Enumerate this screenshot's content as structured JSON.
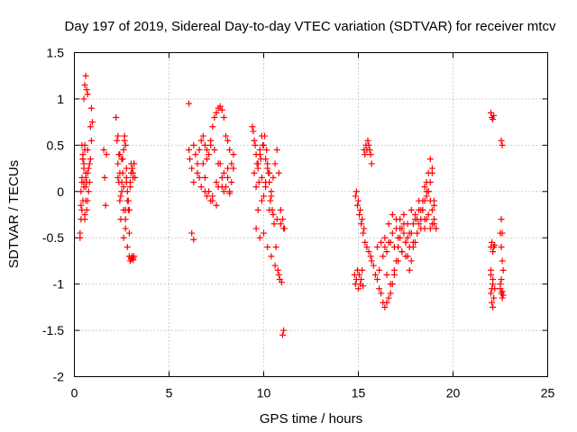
{
  "chart_data": {
    "type": "scatter",
    "title": "Day 197 of 2019, Sidereal Day-to-day VTEC variation (SDTVAR) for receiver mtcv",
    "xlabel": "GPS time / hours",
    "ylabel": "SDTVAR / TECUs",
    "xlim": [
      0,
      25
    ],
    "ylim": [
      -2,
      1.5
    ],
    "xticks": [
      0,
      5,
      10,
      15,
      20,
      25
    ],
    "yticks": [
      -2,
      -1.5,
      -1,
      -0.5,
      0,
      0.5,
      1,
      1.5
    ],
    "xtick_labels": [
      "0",
      "5",
      "10",
      "15",
      "20",
      "25"
    ],
    "ytick_labels": [
      "-2",
      "-1.5",
      "-1",
      "-0.5",
      "0",
      "0.5",
      "1",
      "1.5"
    ],
    "grid": true,
    "marker": "+",
    "color": "#ff0000",
    "series": [
      {
        "name": "SDTVAR",
        "x": [
          0.3,
          0.35,
          0.4,
          0.45,
          0.5,
          0.55,
          0.6,
          0.65,
          0.7,
          0.75,
          0.8,
          0.85,
          0.9,
          0.95,
          0.5,
          0.55,
          0.6,
          0.65,
          0.7,
          0.35,
          0.4,
          0.45,
          0.5,
          0.55,
          0.6,
          0.65,
          0.7,
          0.4,
          0.45,
          0.5,
          0.55,
          0.6,
          0.3,
          0.35,
          0.4,
          0.45,
          0.5,
          0.55,
          0.6,
          0.7,
          0.75,
          0.8,
          0.85,
          0.9,
          1.55,
          1.6,
          1.65,
          1.7,
          2.2,
          2.25,
          2.3,
          2.35,
          2.4,
          2.45,
          2.5,
          2.55,
          2.6,
          2.65,
          2.7,
          2.75,
          2.8,
          2.85,
          2.9,
          2.95,
          3.0,
          3.05,
          3.1,
          3.15,
          3.2,
          2.4,
          2.5,
          2.6,
          2.7,
          2.8,
          2.9,
          3.0,
          3.1,
          2.3,
          2.45,
          2.55,
          2.65,
          2.75,
          2.85,
          2.95,
          3.05,
          3.15,
          2.6,
          2.7,
          2.8,
          2.9,
          3.0,
          3.1,
          2.95,
          3.0,
          3.05,
          3.1,
          3.15,
          2.3,
          2.35,
          2.4,
          2.5,
          2.6,
          2.7,
          2.75,
          6.05,
          6.1,
          6.2,
          6.3,
          6.4,
          6.5,
          6.6,
          6.7,
          6.8,
          6.9,
          7.0,
          7.1,
          7.2,
          7.3,
          7.4,
          7.5,
          7.6,
          7.7,
          7.8,
          7.9,
          8.0,
          8.1,
          8.2,
          8.3,
          8.4,
          6.5,
          6.7,
          6.9,
          7.1,
          7.3,
          7.5,
          7.7,
          7.9,
          8.1,
          8.3,
          6.3,
          6.6,
          6.9,
          7.2,
          7.5,
          7.8,
          8.1,
          8.4,
          6.8,
          7.0,
          7.2,
          7.4,
          7.6,
          7.8,
          8.0,
          8.2,
          7.0,
          7.3,
          7.6,
          7.9,
          8.2,
          6.2,
          6.3,
          6.05,
          9.4,
          9.5,
          9.6,
          9.7,
          9.8,
          9.9,
          10.0,
          10.1,
          10.2,
          10.3,
          10.4,
          10.5,
          10.6,
          10.7,
          10.8,
          10.9,
          11.0,
          11.1,
          9.5,
          9.6,
          9.7,
          9.8,
          9.9,
          10.0,
          10.1,
          10.2,
          10.3,
          10.4,
          9.6,
          9.8,
          10.0,
          10.2,
          10.4,
          10.6,
          10.8,
          9.7,
          9.9,
          10.1,
          10.3,
          10.5,
          10.7,
          10.9,
          9.45,
          9.55,
          9.65,
          9.75,
          9.85,
          9.95,
          10.05,
          10.15,
          10.25,
          10.35,
          10.45,
          10.55,
          10.65,
          10.75,
          10.85,
          10.95,
          11.05,
          11.0,
          11.05,
          14.8,
          14.85,
          14.9,
          14.95,
          15.0,
          15.05,
          15.1,
          15.15,
          15.2,
          15.25,
          15.3,
          15.35,
          15.4,
          15.45,
          15.5,
          15.55,
          15.6,
          15.65,
          15.7,
          14.9,
          15.0,
          15.1,
          15.2,
          15.3,
          14.85,
          14.95,
          15.05,
          15.15,
          15.25,
          15.35,
          15.45,
          15.55,
          15.65,
          15.7,
          15.8,
          15.9,
          16.0,
          16.1,
          16.2,
          16.3,
          16.4,
          16.5,
          16.6,
          16.7,
          16.8,
          16.9,
          17.0,
          17.1,
          17.2,
          17.3,
          17.4,
          17.5,
          17.6,
          17.7,
          17.8,
          17.9,
          18.0,
          18.1,
          18.2,
          18.3,
          18.4,
          18.5,
          18.6,
          18.7,
          18.8,
          18.9,
          19.0,
          19.1,
          16.0,
          16.2,
          16.4,
          16.6,
          16.8,
          17.0,
          17.2,
          17.4,
          17.6,
          17.8,
          18.0,
          18.2,
          18.4,
          18.6,
          18.8,
          19.0,
          16.1,
          16.3,
          16.5,
          16.7,
          16.9,
          17.1,
          17.3,
          17.5,
          17.7,
          17.9,
          18.1,
          18.3,
          18.5,
          18.7,
          18.9,
          16.4,
          16.6,
          16.8,
          17.0,
          17.2,
          17.4,
          17.6,
          17.8,
          18.0,
          18.2,
          18.4,
          18.6,
          18.8,
          19.0,
          16.5,
          16.7,
          16.9,
          17.1,
          17.3,
          17.5,
          17.7,
          17.9,
          18.1,
          18.3,
          18.5,
          18.7,
          18.9,
          18.5,
          18.6,
          18.7,
          18.8,
          18.9,
          19.0,
          19.1,
          22.0,
          22.05,
          22.1,
          22.15,
          22.0,
          22.05,
          22.1,
          22.15,
          22.2,
          22.0,
          22.1,
          22.2,
          22.0,
          22.05,
          22.1,
          22.15,
          22.05,
          22.1,
          22.0,
          22.5,
          22.55,
          22.6,
          22.65,
          22.5,
          22.55,
          22.6,
          22.5,
          22.55,
          22.6,
          22.65,
          22.55,
          22.6,
          22.55,
          22.6
        ],
        "y": [
          -0.5,
          -0.3,
          0.1,
          0.4,
          0.3,
          0.5,
          0.2,
          0.1,
          -0.1,
          0.0,
          0.3,
          0.7,
          0.9,
          0.75,
          1.0,
          1.15,
          1.25,
          1.1,
          1.05,
          0.0,
          -0.2,
          -0.1,
          0.1,
          -0.3,
          -0.1,
          -0.2,
          0.2,
          0.5,
          0.35,
          0.25,
          0.45,
          0.05,
          -0.45,
          -0.15,
          0.15,
          0.35,
          0.05,
          -0.25,
          0.15,
          0.45,
          0.25,
          0.1,
          0.35,
          0.55,
          0.45,
          0.15,
          -0.15,
          0.4,
          0.8,
          0.55,
          0.3,
          0.1,
          -0.1,
          -0.3,
          0.0,
          0.2,
          0.45,
          0.6,
          0.5,
          0.25,
          0.0,
          -0.2,
          -0.45,
          0.1,
          0.3,
          0.25,
          0.2,
          0.3,
          0.15,
          0.4,
          0.1,
          -0.2,
          -0.4,
          -0.6,
          -0.7,
          -0.73,
          -0.72,
          0.15,
          -0.05,
          0.35,
          0.55,
          0.15,
          -0.1,
          0.05,
          0.25,
          0.3,
          -0.5,
          -0.3,
          -0.1,
          -0.2,
          0.2,
          0.15,
          -0.75,
          -0.72,
          -0.7,
          -0.74,
          -0.7,
          0.6,
          0.4,
          0.2,
          0.35,
          0.05,
          -0.2,
          0.1,
          0.45,
          0.35,
          0.25,
          0.5,
          0.4,
          0.3,
          0.45,
          0.55,
          0.6,
          0.5,
          0.45,
          0.4,
          0.55,
          0.7,
          0.8,
          0.85,
          0.9,
          0.92,
          0.88,
          0.8,
          0.6,
          0.55,
          0.45,
          0.3,
          0.25,
          0.2,
          0.05,
          0.15,
          0.0,
          -0.05,
          0.1,
          0.3,
          0.2,
          0.25,
          0.1,
          0.1,
          0.15,
          0.0,
          -0.1,
          -0.15,
          0.05,
          0.15,
          0.4,
          0.3,
          0.35,
          0.5,
          0.45,
          0.3,
          0.15,
          0.05,
          0.0,
          -0.05,
          -0.1,
          0.05,
          0.0,
          -0.02,
          -0.45,
          -0.52,
          0.95,
          0.7,
          0.55,
          0.4,
          0.3,
          0.45,
          0.6,
          0.5,
          0.35,
          0.25,
          0.1,
          -0.05,
          0.15,
          0.3,
          0.45,
          0.2,
          -0.2,
          -0.3,
          -0.4,
          0.2,
          0.05,
          0.25,
          0.4,
          0.15,
          -0.05,
          0.1,
          0.3,
          0.2,
          0.0,
          -0.4,
          -0.5,
          -0.45,
          -0.6,
          -0.7,
          -0.8,
          -0.9,
          -0.2,
          -0.1,
          0.05,
          -0.2,
          -0.25,
          -0.3,
          -0.35,
          0.65,
          0.5,
          0.3,
          0.1,
          0.35,
          0.5,
          0.6,
          0.45,
          0.2,
          -0.1,
          -0.2,
          -0.35,
          -0.6,
          -0.85,
          -0.95,
          -0.98,
          -0.4,
          -1.55,
          -1.5,
          -0.9,
          -1.0,
          -0.95,
          -0.85,
          -1.05,
          -0.9,
          -1.0,
          -0.95,
          -0.85,
          -1.02,
          0.45,
          0.4,
          0.5,
          0.45,
          0.55,
          0.5,
          0.45,
          0.4,
          0.3,
          0.0,
          -0.1,
          -0.2,
          -0.3,
          -0.4,
          -0.05,
          -0.15,
          -0.25,
          -0.35,
          -0.45,
          -0.55,
          -0.6,
          -0.65,
          -0.7,
          -0.75,
          -0.8,
          -0.9,
          -0.95,
          -1.05,
          -1.1,
          -1.2,
          -1.25,
          -1.2,
          -1.15,
          -1.1,
          -1.0,
          -0.9,
          -0.75,
          -0.6,
          -0.5,
          -0.4,
          -0.45,
          -0.55,
          -0.7,
          -0.85,
          -0.75,
          -0.6,
          -0.55,
          -0.45,
          -0.35,
          -0.3,
          -0.2,
          -0.1,
          0.0,
          0.2,
          0.35,
          0.2,
          -0.1,
          -0.4,
          -0.6,
          -0.55,
          -0.5,
          -0.35,
          -0.25,
          -0.3,
          -0.4,
          -0.35,
          -0.5,
          -0.45,
          -0.3,
          -0.2,
          -0.1,
          -0.05,
          0.1,
          -0.15,
          -0.85,
          -0.7,
          -0.65,
          -0.55,
          -0.6,
          -0.5,
          -0.65,
          -0.7,
          -0.6,
          -0.55,
          -0.45,
          -0.4,
          -0.3,
          -0.25,
          -0.35,
          -0.6,
          -0.55,
          -0.45,
          -0.4,
          -0.3,
          -0.25,
          -0.35,
          -0.2,
          -0.25,
          -0.1,
          -0.2,
          -0.3,
          -0.4,
          -0.35,
          -0.9,
          -1.0,
          -0.85,
          -0.75,
          -0.65,
          -0.55,
          -0.45,
          -0.35,
          -0.3,
          -0.2,
          0.05,
          0.0,
          0.25,
          -0.4,
          0.1,
          0.0,
          -0.1,
          -0.2,
          -0.3,
          -0.4,
          0.85,
          0.8,
          0.78,
          0.82,
          -0.6,
          -0.55,
          -0.65,
          -0.6,
          -0.58,
          -0.9,
          -1.0,
          -1.05,
          -1.1,
          -1.2,
          -1.25,
          -1.15,
          -1.05,
          -0.95,
          -0.85,
          -0.45,
          -0.6,
          -0.75,
          -0.85,
          -1.0,
          -1.1,
          -1.15,
          -1.05,
          -0.95,
          -1.08,
          -1.12,
          0.55,
          0.5,
          -0.3,
          -0.45
        ]
      }
    ]
  }
}
